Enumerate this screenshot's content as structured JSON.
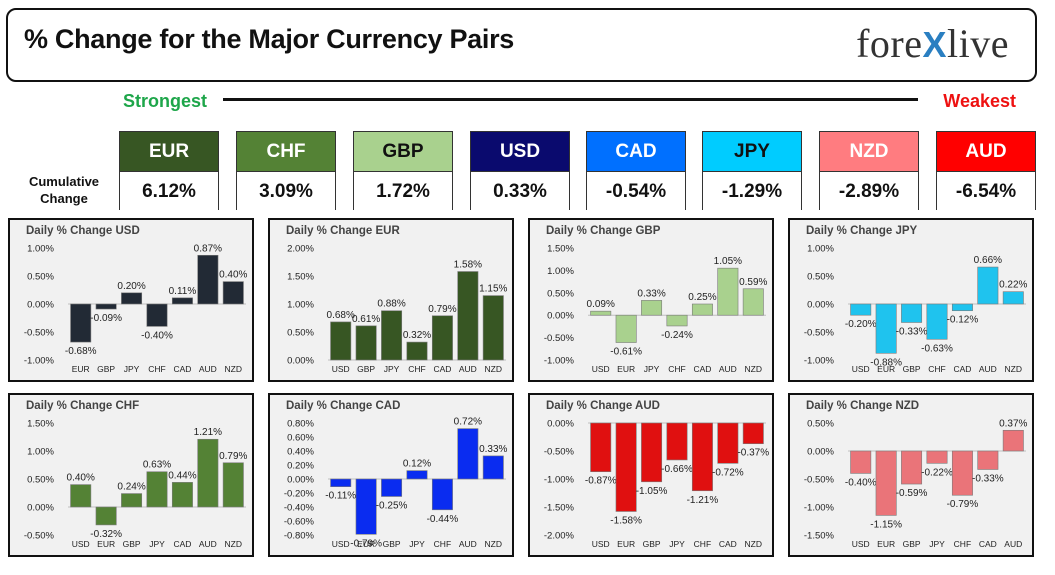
{
  "header": {
    "title": "% Change for the Major Currency Pairs",
    "logo": {
      "left": "fore",
      "mark": "X",
      "right": "live"
    }
  },
  "rank": {
    "strongest": "Strongest",
    "weakest": "Weakest"
  },
  "cumulative_label_line1": "Cumulative",
  "cumulative_label_line2": "Change",
  "currencies": [
    {
      "code": "EUR",
      "value": "6.12%",
      "bg": "#375623",
      "fg": "#ffffff"
    },
    {
      "code": "CHF",
      "value": "3.09%",
      "bg": "#548235",
      "fg": "#ffffff"
    },
    {
      "code": "GBP",
      "value": "1.72%",
      "bg": "#a9d18e",
      "fg": "#111111"
    },
    {
      "code": "USD",
      "value": "0.33%",
      "bg": "#0a0a6e",
      "fg": "#ffffff"
    },
    {
      "code": "CAD",
      "value": "-0.54%",
      "bg": "#0070ff",
      "fg": "#ffffff"
    },
    {
      "code": "JPY",
      "value": "-1.29%",
      "bg": "#00ccff",
      "fg": "#111111"
    },
    {
      "code": "NZD",
      "value": "-2.89%",
      "bg": "#ff7c80",
      "fg": "#ffffff"
    },
    {
      "code": "AUD",
      "value": "-6.54%",
      "bg": "#ff0000",
      "fg": "#ffffff"
    }
  ],
  "chart_data": [
    {
      "type": "bar",
      "title": "Daily % Change USD",
      "categories": [
        "EUR",
        "GBP",
        "JPY",
        "CHF",
        "CAD",
        "AUD",
        "NZD"
      ],
      "values": [
        -0.68,
        -0.09,
        0.2,
        -0.4,
        0.11,
        0.87,
        0.4
      ],
      "labels": [
        "-0.68%",
        "-0.09%",
        "0.20%",
        "-0.40%",
        "0.11%",
        "0.87%",
        "0.40%"
      ],
      "ylim": [
        -1.0,
        1.0
      ],
      "yticks": [
        -1.0,
        -0.5,
        0.0,
        0.5,
        1.0
      ],
      "ytick_labels": [
        "-1.00%",
        "-0.50%",
        "0.00%",
        "0.50%",
        "1.00%"
      ],
      "color": "#222a35"
    },
    {
      "type": "bar",
      "title": "Daily % Change EUR",
      "categories": [
        "USD",
        "GBP",
        "JPY",
        "CHF",
        "CAD",
        "AUD",
        "NZD"
      ],
      "values": [
        0.68,
        0.61,
        0.88,
        0.32,
        0.79,
        1.58,
        1.15
      ],
      "labels": [
        "0.68%",
        "0.61%",
        "0.88%",
        "0.32%",
        "0.79%",
        "1.58%",
        "1.15%"
      ],
      "ylim": [
        0.0,
        2.0
      ],
      "yticks": [
        0.0,
        0.5,
        1.0,
        1.5,
        2.0
      ],
      "ytick_labels": [
        "0.00%",
        "0.50%",
        "1.00%",
        "1.50%",
        "2.00%"
      ],
      "color": "#375623"
    },
    {
      "type": "bar",
      "title": "Daily % Change GBP",
      "categories": [
        "USD",
        "EUR",
        "JPY",
        "CHF",
        "CAD",
        "AUD",
        "NZD"
      ],
      "values": [
        0.09,
        -0.61,
        0.33,
        -0.24,
        0.25,
        1.05,
        0.59
      ],
      "labels": [
        "0.09%",
        "-0.61%",
        "0.33%",
        "-0.24%",
        "0.25%",
        "1.05%",
        "0.59%"
      ],
      "ylim": [
        -1.0,
        1.5
      ],
      "yticks": [
        -1.0,
        -0.5,
        0.0,
        0.5,
        1.0,
        1.5
      ],
      "ytick_labels": [
        "-1.00%",
        "-0.50%",
        "0.00%",
        "0.50%",
        "1.00%",
        "1.50%"
      ],
      "color": "#a9d18e"
    },
    {
      "type": "bar",
      "title": "Daily % Change JPY",
      "categories": [
        "USD",
        "EUR",
        "GBP",
        "CHF",
        "CAD",
        "AUD",
        "NZD"
      ],
      "values": [
        -0.2,
        -0.88,
        -0.33,
        -0.63,
        -0.12,
        0.66,
        0.22
      ],
      "labels": [
        "-0.20%",
        "-0.88%",
        "-0.33%",
        "-0.63%",
        "-0.12%",
        "0.66%",
        "0.22%"
      ],
      "ylim": [
        -1.0,
        1.0
      ],
      "yticks": [
        -1.0,
        -0.5,
        0.0,
        0.5,
        1.0
      ],
      "ytick_labels": [
        "-1.00%",
        "-0.50%",
        "0.00%",
        "0.50%",
        "1.00%"
      ],
      "color": "#1fc3ee"
    },
    {
      "type": "bar",
      "title": "Daily % Change CHF",
      "categories": [
        "USD",
        "EUR",
        "GBP",
        "JPY",
        "CAD",
        "AUD",
        "NZD"
      ],
      "values": [
        0.4,
        -0.32,
        0.24,
        0.63,
        0.44,
        1.21,
        0.79
      ],
      "labels": [
        "0.40%",
        "-0.32%",
        "0.24%",
        "0.63%",
        "0.44%",
        "1.21%",
        "0.79%"
      ],
      "ylim": [
        -0.5,
        1.5
      ],
      "yticks": [
        -0.5,
        0.0,
        0.5,
        1.0,
        1.5
      ],
      "ytick_labels": [
        "-0.50%",
        "0.00%",
        "0.50%",
        "1.00%",
        "1.50%"
      ],
      "color": "#548235"
    },
    {
      "type": "bar",
      "title": "Daily % Change CAD",
      "categories": [
        "USD",
        "EUR",
        "GBP",
        "JPY",
        "CHF",
        "AUD",
        "NZD"
      ],
      "values": [
        -0.11,
        -0.79,
        -0.25,
        0.12,
        -0.44,
        0.72,
        0.33
      ],
      "labels": [
        "-0.11%",
        "-0.79%",
        "-0.25%",
        "0.12%",
        "-0.44%",
        "0.72%",
        "0.33%"
      ],
      "ylim": [
        -0.8,
        0.8
      ],
      "yticks": [
        -0.8,
        -0.6,
        -0.4,
        -0.2,
        0.0,
        0.2,
        0.4,
        0.6,
        0.8
      ],
      "ytick_labels": [
        "-0.80%",
        "-0.60%",
        "-0.40%",
        "-0.20%",
        "0.00%",
        "0.20%",
        "0.40%",
        "0.60%",
        "0.80%"
      ],
      "color": "#0a2cf0"
    },
    {
      "type": "bar",
      "title": "Daily % Change AUD",
      "categories": [
        "USD",
        "EUR",
        "GBP",
        "JPY",
        "CHF",
        "CAD",
        "NZD"
      ],
      "values": [
        -0.87,
        -1.58,
        -1.05,
        -0.66,
        -1.21,
        -0.72,
        -0.37
      ],
      "labels": [
        "-0.87%",
        "-1.58%",
        "-1.05%",
        "-0.66%",
        "-1.21%",
        "-0.72%",
        "-0.37%"
      ],
      "ylim": [
        -2.0,
        0.0
      ],
      "yticks": [
        -2.0,
        -1.5,
        -1.0,
        -0.5,
        0.0
      ],
      "ytick_labels": [
        "-2.00%",
        "-1.50%",
        "-1.00%",
        "-0.50%",
        "0.00%"
      ],
      "color": "#e01010"
    },
    {
      "type": "bar",
      "title": "Daily % Change NZD",
      "categories": [
        "USD",
        "EUR",
        "GBP",
        "JPY",
        "CHF",
        "CAD",
        "AUD"
      ],
      "values": [
        -0.4,
        -1.15,
        -0.59,
        -0.22,
        -0.79,
        -0.33,
        0.37
      ],
      "labels": [
        "-0.40%",
        "-1.15%",
        "-0.59%",
        "-0.22%",
        "-0.79%",
        "-0.33%",
        "0.37%"
      ],
      "ylim": [
        -1.5,
        0.5
      ],
      "yticks": [
        -1.5,
        -1.0,
        -0.5,
        0.0,
        0.5
      ],
      "ytick_labels": [
        "-1.50%",
        "-1.00%",
        "-0.50%",
        "0.00%",
        "0.50%"
      ],
      "color": "#ea7479"
    }
  ]
}
